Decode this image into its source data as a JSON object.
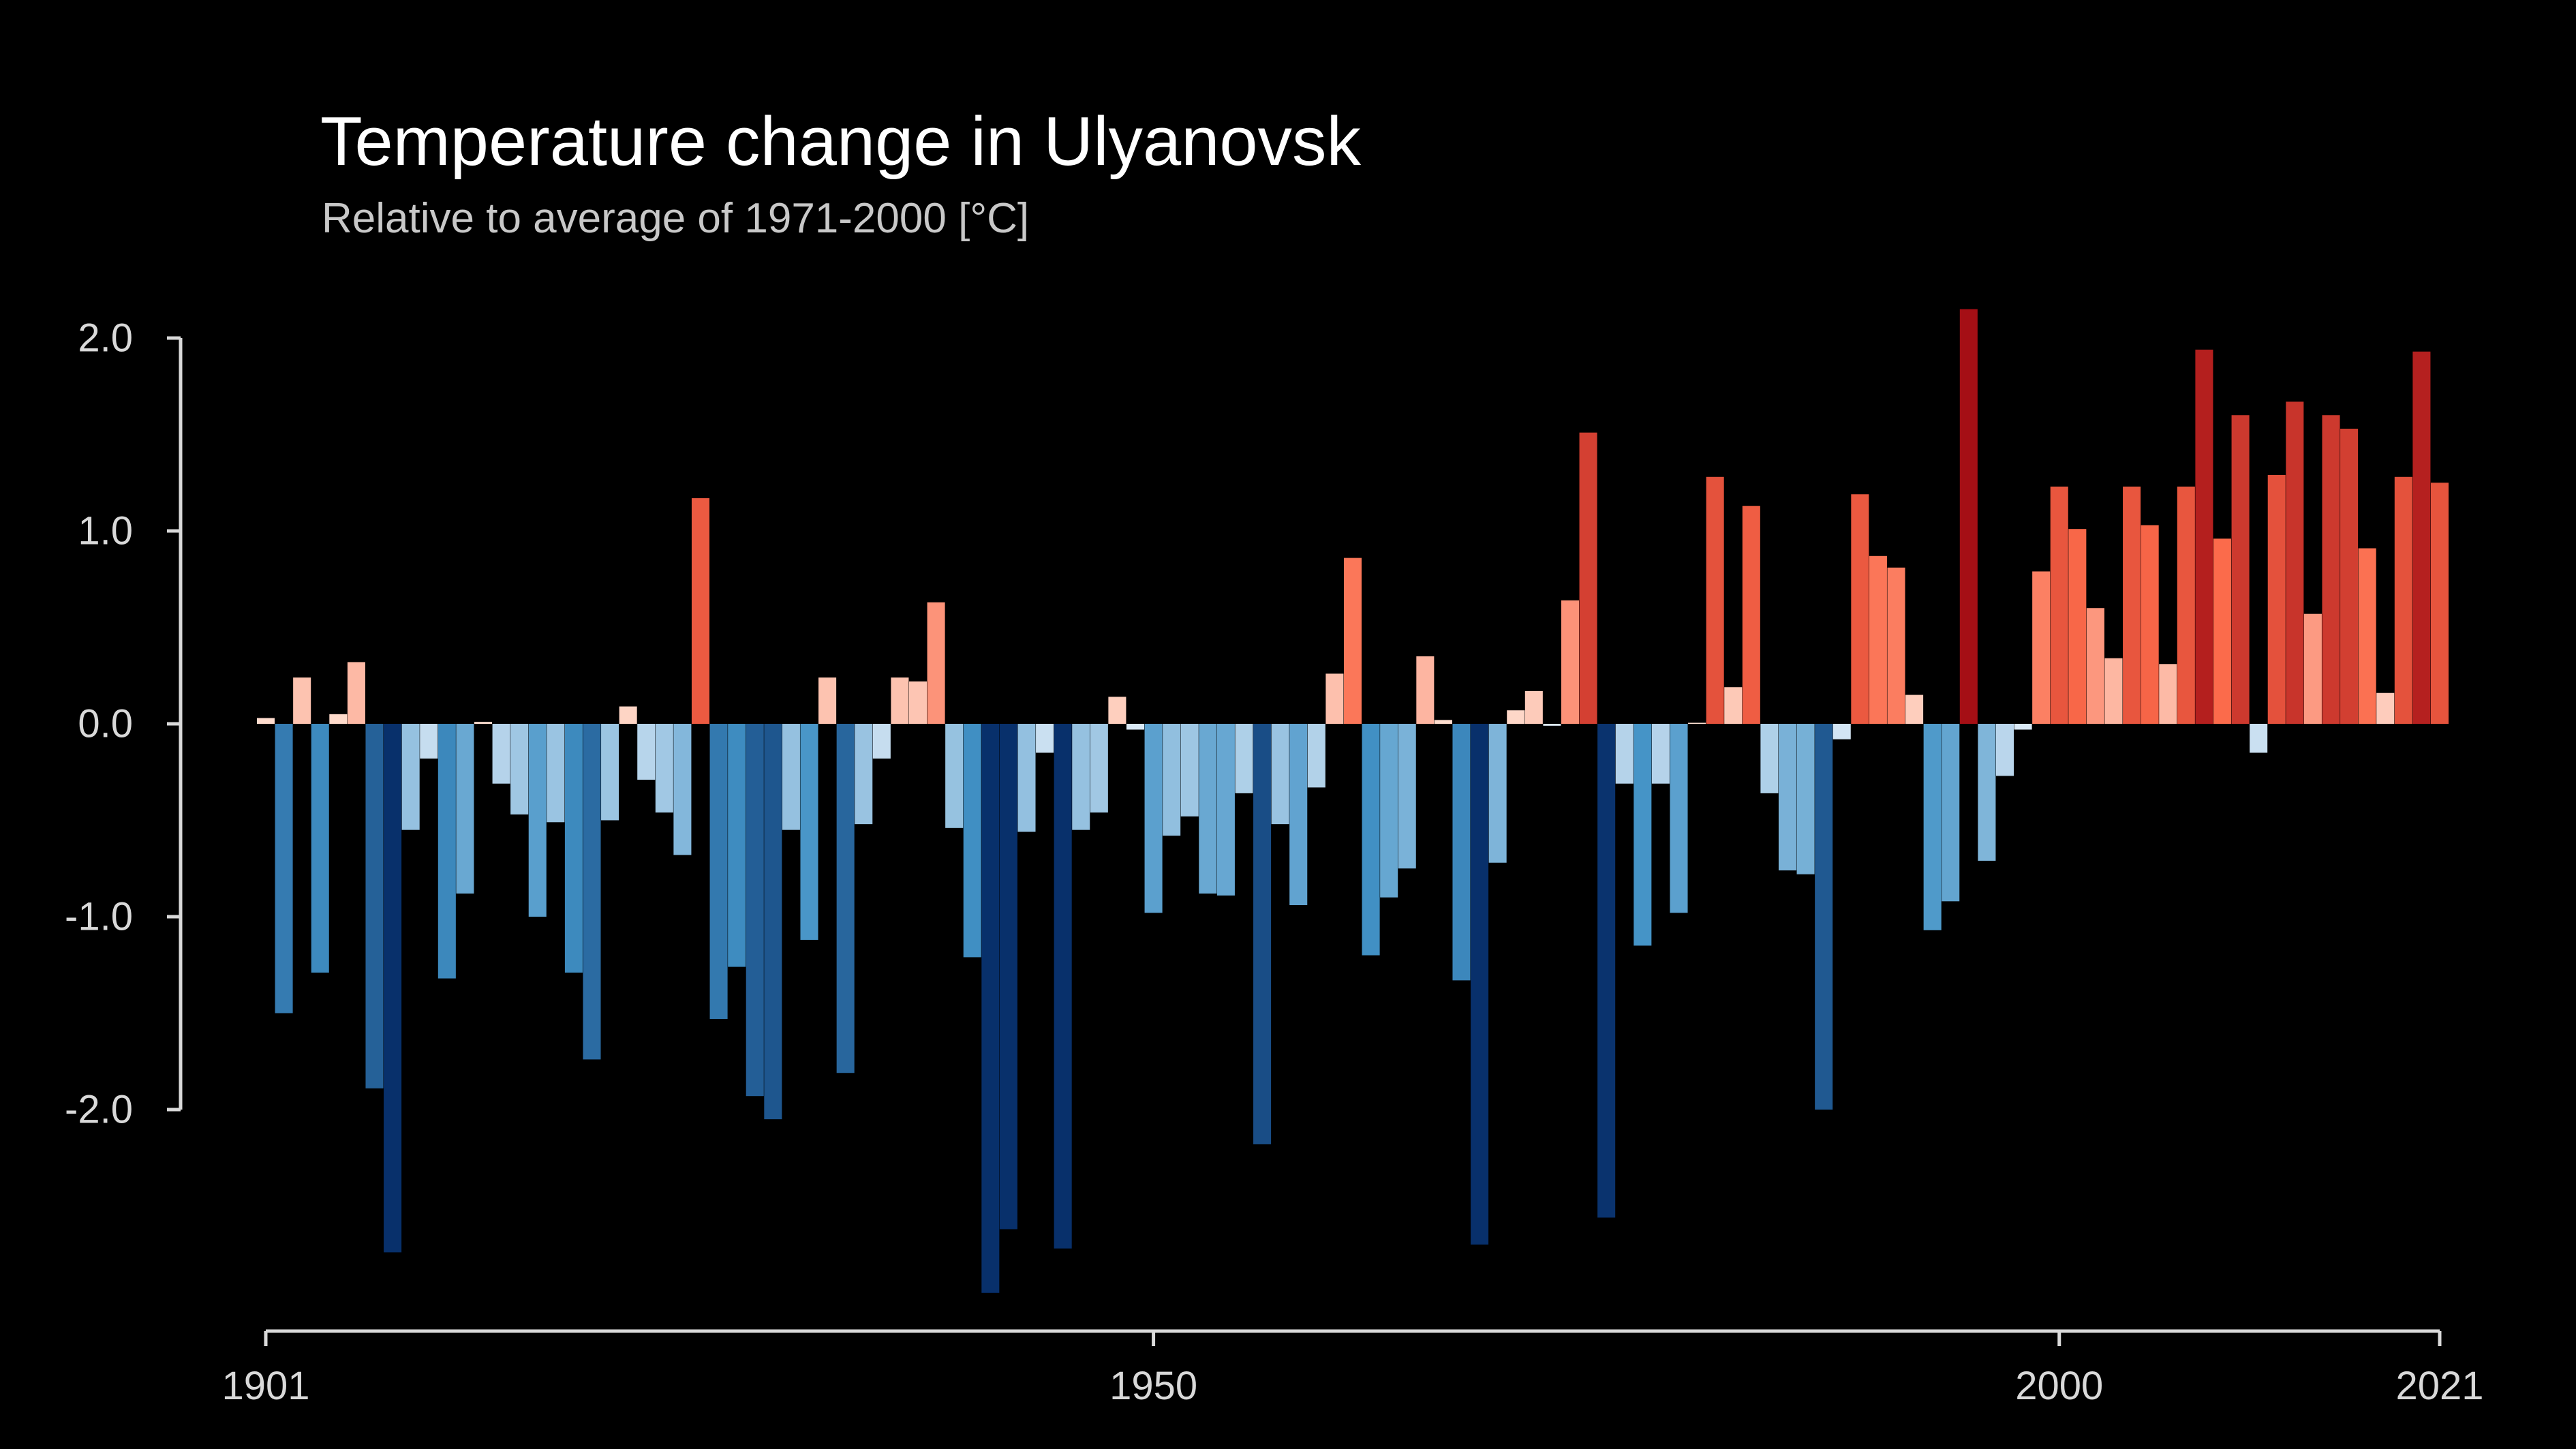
{
  "header": {
    "title": "Temperature change in Ulyanovsk",
    "subtitle": "Relative to average of 1971-2000  [°C]"
  },
  "chart_data": {
    "type": "bar",
    "title": "Temperature change in Ulyanovsk",
    "subtitle": "Relative to average of 1971-2000  [°C]",
    "xlabel": "",
    "ylabel": "",
    "xlim": [
      1901,
      2021
    ],
    "ylim": [
      -2.95,
      2.2
    ],
    "y_ticks": [
      2.0,
      1.0,
      0.0,
      -1.0,
      -2.0
    ],
    "y_tick_labels": [
      "2.0",
      "1.0",
      "0.0",
      "-1.0",
      "-2.0"
    ],
    "x_ticks": [
      1901,
      1950,
      2000,
      2021
    ],
    "x_tick_labels": [
      "1901",
      "1950",
      "2000",
      "2021"
    ],
    "grid": false,
    "color_scale": {
      "cold_max": "#08306b",
      "cold_mid": "#4292c6",
      "neutral": "#f7fbff",
      "warm_mid": "#fb6a4a",
      "warm_max": "#a50f15"
    },
    "years": [
      1901,
      1902,
      1903,
      1904,
      1905,
      1906,
      1907,
      1908,
      1909,
      1910,
      1911,
      1912,
      1913,
      1914,
      1915,
      1916,
      1917,
      1918,
      1919,
      1920,
      1921,
      1922,
      1923,
      1924,
      1925,
      1926,
      1927,
      1928,
      1929,
      1930,
      1931,
      1932,
      1933,
      1934,
      1935,
      1936,
      1937,
      1938,
      1939,
      1940,
      1941,
      1942,
      1943,
      1944,
      1945,
      1946,
      1947,
      1948,
      1949,
      1950,
      1951,
      1952,
      1953,
      1954,
      1955,
      1956,
      1957,
      1958,
      1959,
      1960,
      1961,
      1962,
      1963,
      1964,
      1965,
      1966,
      1967,
      1968,
      1969,
      1970,
      1971,
      1972,
      1973,
      1974,
      1975,
      1976,
      1977,
      1978,
      1979,
      1980,
      1981,
      1982,
      1983,
      1984,
      1985,
      1986,
      1987,
      1988,
      1989,
      1990,
      1991,
      1992,
      1993,
      1994,
      1995,
      1996,
      1997,
      1998,
      1999,
      2000,
      2001,
      2002,
      2003,
      2004,
      2005,
      2006,
      2007,
      2008,
      2009,
      2010,
      2011,
      2012,
      2013,
      2014,
      2015,
      2016,
      2017,
      2018,
      2019,
      2020,
      2021
    ],
    "values": [
      0.03,
      -1.5,
      0.24,
      -1.29,
      0.05,
      0.32,
      -1.89,
      -2.74,
      -0.55,
      -0.18,
      -1.32,
      -0.88,
      0.01,
      -0.31,
      -0.47,
      -1.0,
      -0.51,
      -1.29,
      -1.74,
      -0.5,
      0.09,
      -0.29,
      -0.46,
      -0.68,
      1.17,
      -1.53,
      -1.26,
      -1.93,
      -2.05,
      -0.55,
      -1.12,
      0.24,
      -1.81,
      -0.52,
      -0.18,
      0.24,
      0.22,
      0.63,
      -0.54,
      -1.21,
      -2.95,
      -2.62,
      -0.56,
      -0.15,
      -2.72,
      -0.55,
      -0.46,
      0.14,
      -0.03,
      -0.98,
      -0.58,
      -0.48,
      -0.88,
      -0.89,
      -0.36,
      -2.18,
      -0.52,
      -0.94,
      -0.33,
      0.26,
      0.86,
      -1.2,
      -0.9,
      -0.75,
      0.35,
      0.02,
      -1.33,
      -2.7,
      -0.72,
      0.07,
      0.17,
      -0.01,
      0.64,
      1.51,
      -2.56,
      -0.31,
      -1.15,
      -0.31,
      -0.98,
      0.0,
      1.28,
      0.19,
      1.13,
      -0.36,
      -0.76,
      -0.78,
      -2.0,
      -0.08,
      1.19,
      0.87,
      0.81,
      0.15,
      -1.07,
      -0.92,
      2.15,
      -0.71,
      -0.27,
      -0.03,
      0.79,
      1.23,
      1.01,
      0.6,
      0.34,
      1.23,
      1.03,
      0.31,
      1.23,
      1.94,
      0.96,
      1.6,
      -0.15,
      1.29,
      1.67,
      0.57,
      1.6,
      1.53,
      0.91,
      0.16,
      1.28,
      1.93,
      1.25
    ]
  }
}
